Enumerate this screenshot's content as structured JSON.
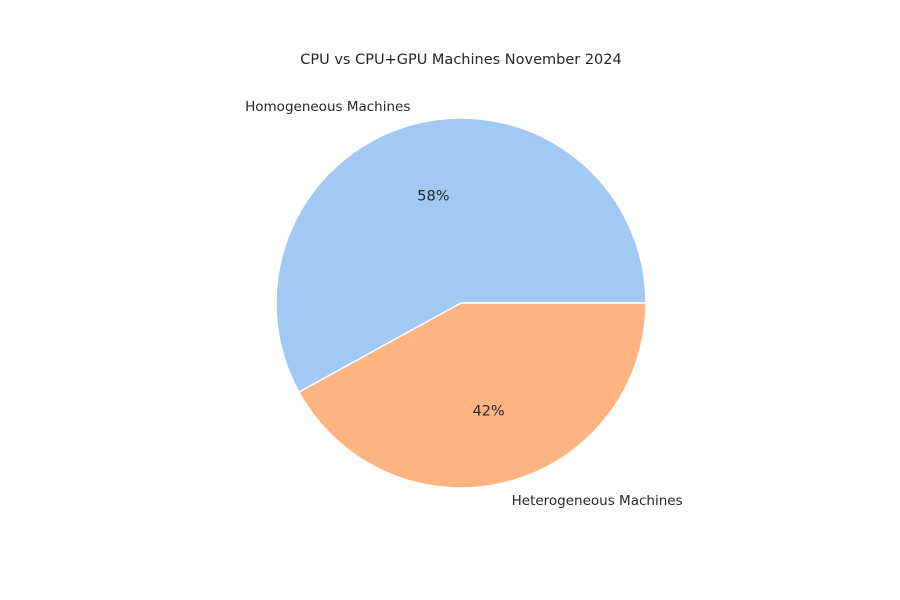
{
  "chart_data": {
    "type": "pie",
    "title": "CPU vs CPU+GPU Machines November 2024",
    "categories": [
      "Homogeneous Machines",
      "Heterogeneous Machines"
    ],
    "values": [
      58,
      42
    ],
    "value_labels": [
      "58%",
      "42%"
    ],
    "colors": [
      "#a1c9f4",
      "#ffb482"
    ],
    "start_angle_deg": 0,
    "direction": "counterclockwise",
    "legend": "none"
  }
}
